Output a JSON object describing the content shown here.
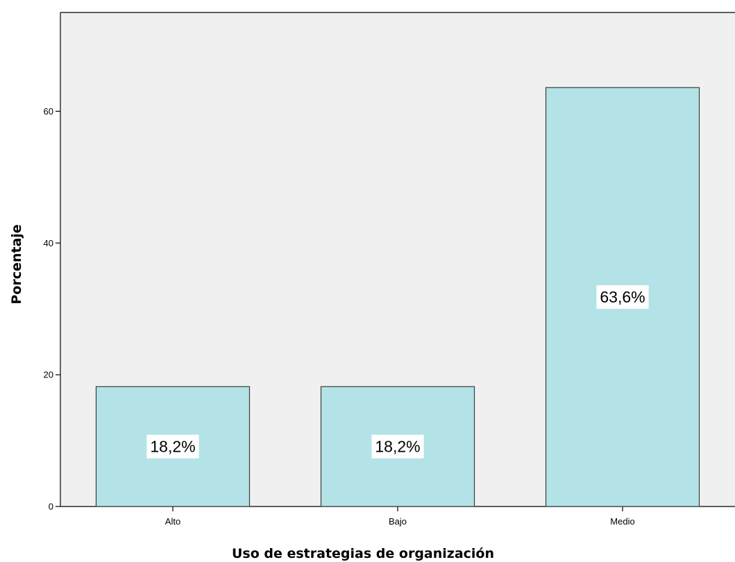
{
  "chart_data": {
    "type": "bar",
    "categories": [
      "Alto",
      "Bajo",
      "Medio"
    ],
    "values": [
      18.2,
      18.2,
      63.6
    ],
    "data_labels": [
      "18,2%",
      "18,2%",
      "63,6%"
    ],
    "xlabel": "Uso de estrategias de organización",
    "ylabel": "Porcentaje",
    "ylim": [
      0,
      75
    ],
    "yticks": [
      0,
      20,
      40,
      60
    ],
    "grid": false,
    "colors": {
      "plot_background": "#f0f0f0",
      "bar_fill": "#b3e3e6",
      "bar_stroke": "#3a3a3a",
      "label_background": "#ffffff"
    }
  }
}
